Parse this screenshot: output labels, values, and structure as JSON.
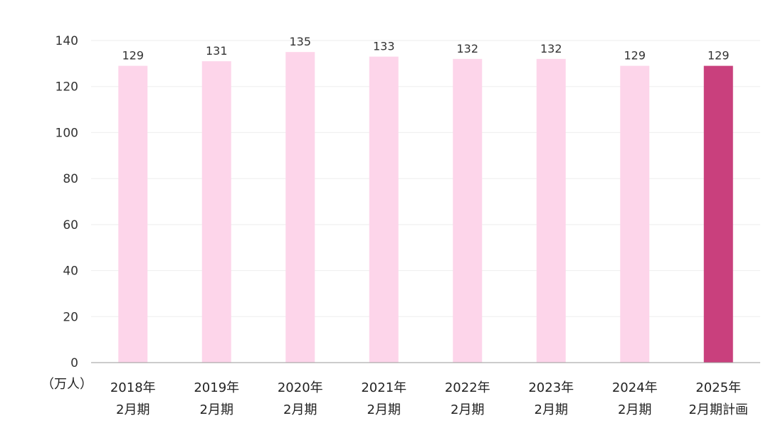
{
  "chart_data": {
    "type": "bar",
    "categories": [
      [
        "2018年",
        "2月期"
      ],
      [
        "2019年",
        "2月期"
      ],
      [
        "2020年",
        "2月期"
      ],
      [
        "2021年",
        "2月期"
      ],
      [
        "2022年",
        "2月期"
      ],
      [
        "2023年",
        "2月期"
      ],
      [
        "2024年",
        "2月期"
      ],
      [
        "2025年",
        "2月期計画"
      ]
    ],
    "values": [
      129,
      131,
      135,
      133,
      132,
      132,
      129,
      129
    ],
    "bar_colors": [
      "#fdd5ea",
      "#fdd5ea",
      "#fdd5ea",
      "#fdd5ea",
      "#fdd5ea",
      "#fdd5ea",
      "#fdd5ea",
      "#c9407d"
    ],
    "title": "",
    "xlabel": "",
    "ylabel": "",
    "unit": "（万人）",
    "ylim": [
      0,
      140
    ],
    "yticks": [
      0,
      20,
      40,
      60,
      80,
      100,
      120,
      140
    ],
    "grid": true,
    "data_labels": true,
    "legend": "none"
  }
}
